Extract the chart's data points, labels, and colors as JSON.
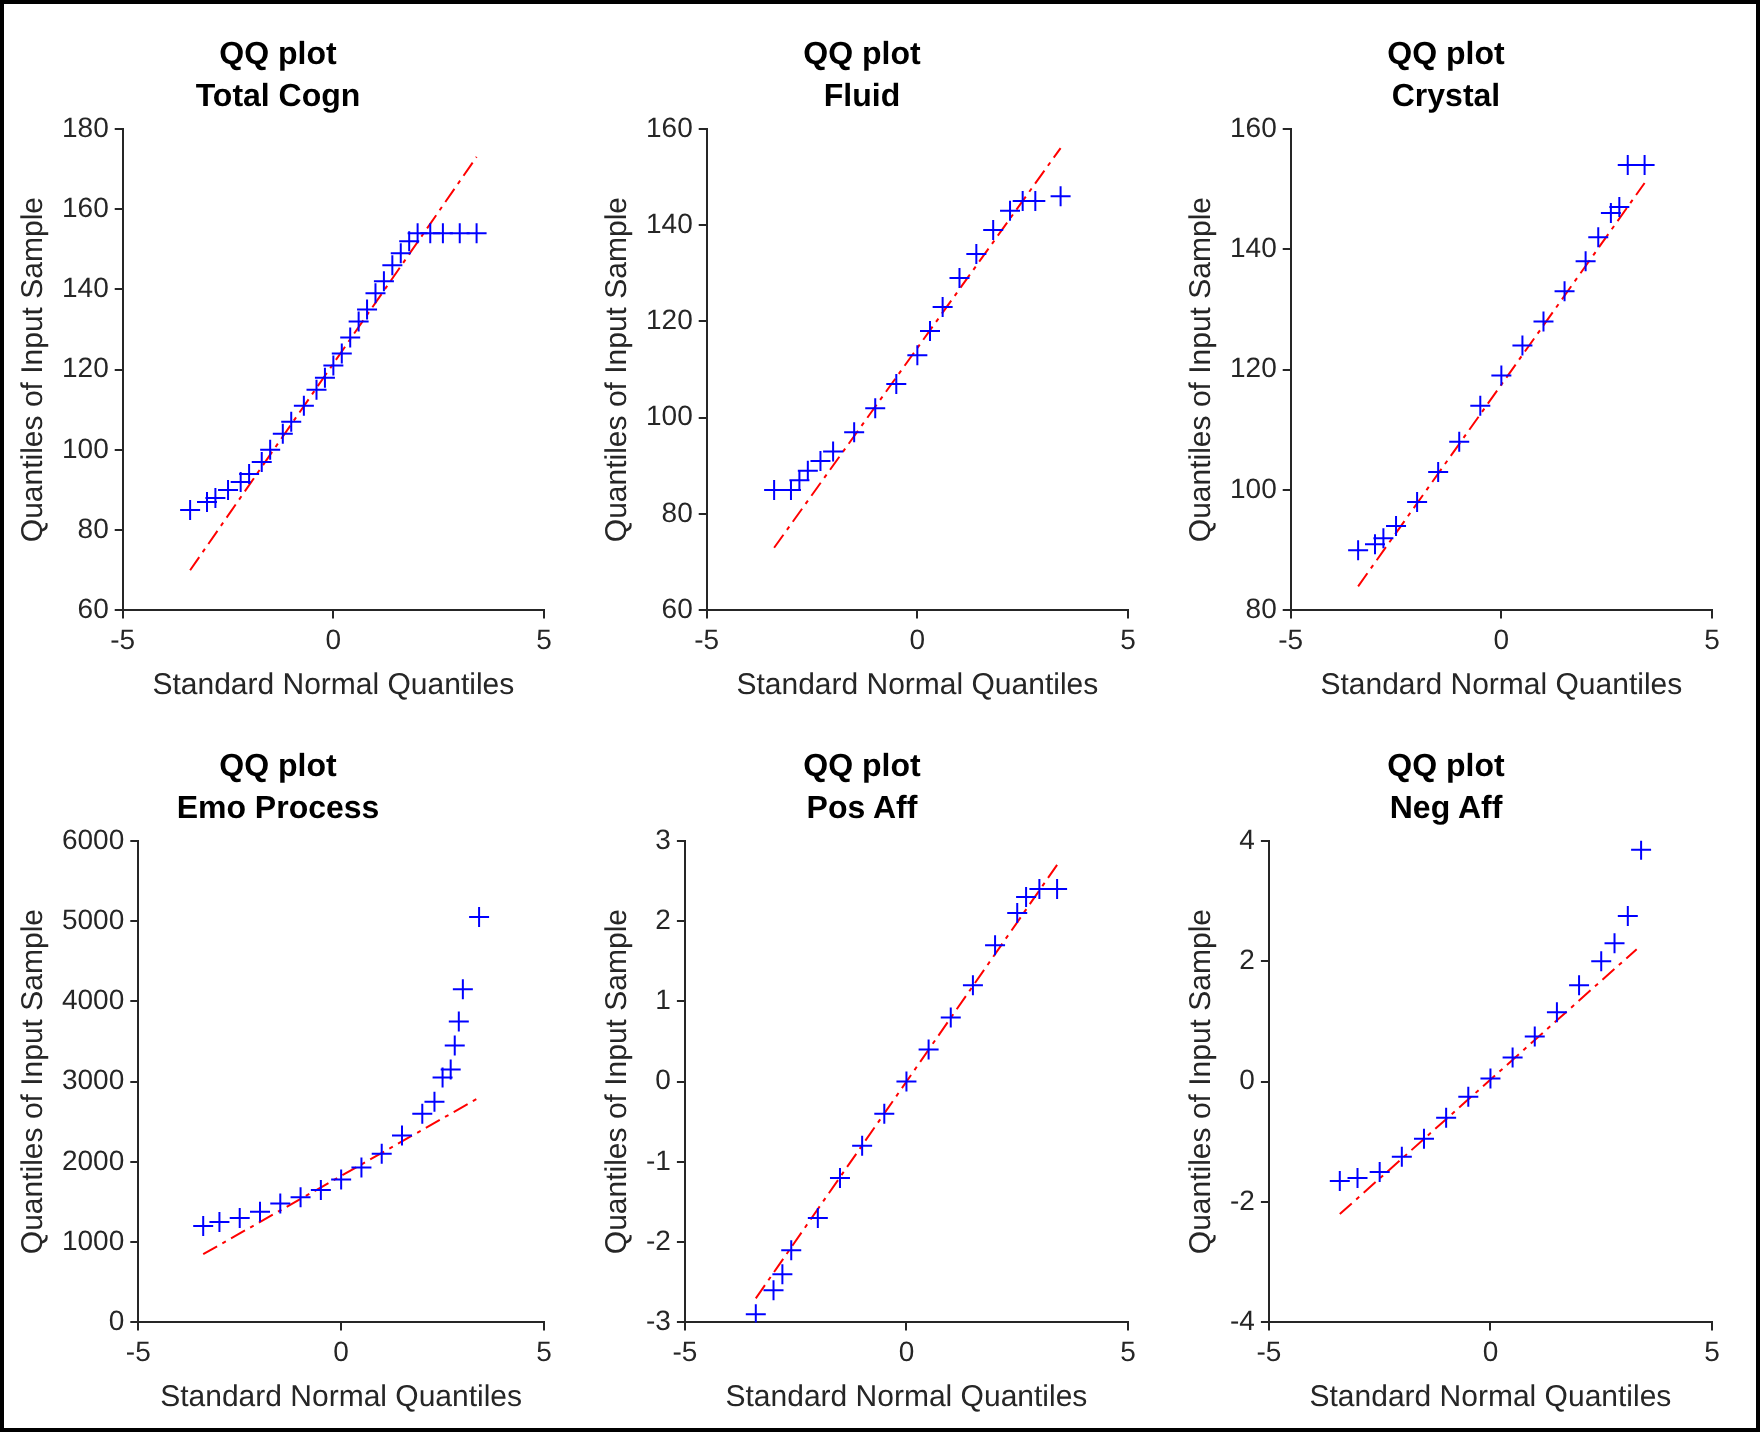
{
  "chart_data": [
    {
      "type": "scatter",
      "title": "QQ plot",
      "subtitle": "Total Cogn",
      "xlabel": "Standard Normal Quantiles",
      "ylabel": "Quantiles of Input Sample",
      "xlim": [
        -5,
        5
      ],
      "xticks": [
        -5,
        0,
        5
      ],
      "ylim": [
        60,
        180
      ],
      "yticks": [
        60,
        80,
        100,
        120,
        140,
        160,
        180
      ],
      "grid": false,
      "legend": false,
      "series": [
        {
          "type": "scatter",
          "marker": "cross",
          "color": "#0000ff",
          "x": [
            -3.4,
            -3.0,
            -2.8,
            -2.5,
            -2.2,
            -2.0,
            -1.7,
            -1.5,
            -1.2,
            -1.0,
            -0.7,
            -0.4,
            -0.2,
            0,
            0.2,
            0.4,
            0.6,
            0.8,
            1.0,
            1.2,
            1.4,
            1.6,
            1.8,
            2.0,
            2.3,
            2.6,
            3.0,
            3.4
          ],
          "values": [
            85,
            87,
            88,
            90,
            92,
            94,
            97,
            100,
            104,
            107,
            111,
            115,
            118,
            121,
            124,
            128,
            132,
            135,
            139,
            142,
            146,
            149,
            152,
            154,
            154,
            154,
            154,
            154
          ]
        },
        {
          "type": "line",
          "line_style": "dashed",
          "color": "#ff0000",
          "x": [
            -3.4,
            3.4
          ],
          "values": [
            70,
            173
          ]
        }
      ]
    },
    {
      "type": "scatter",
      "title": "QQ plot",
      "subtitle": "Fluid",
      "xlabel": "Standard Normal Quantiles",
      "ylabel": "Quantiles of Input Sample",
      "xlim": [
        -5,
        5
      ],
      "xticks": [
        -5,
        0,
        5
      ],
      "ylim": [
        60,
        160
      ],
      "yticks": [
        60,
        80,
        100,
        120,
        140,
        160
      ],
      "grid": false,
      "legend": false,
      "series": [
        {
          "type": "scatter",
          "marker": "cross",
          "color": "#0000ff",
          "x": [
            -3.4,
            -3.0,
            -2.8,
            -2.6,
            -2.3,
            -2.0,
            -1.5,
            -1.0,
            -0.5,
            0,
            0.3,
            0.6,
            1.0,
            1.4,
            1.8,
            2.2,
            2.5,
            2.8,
            3.4
          ],
          "values": [
            85,
            85,
            87,
            89,
            91,
            93,
            97,
            102,
            107,
            113,
            118,
            123,
            129,
            134,
            139,
            143,
            145,
            145,
            146
          ]
        },
        {
          "type": "line",
          "line_style": "dashed",
          "color": "#ff0000",
          "x": [
            -3.4,
            3.4
          ],
          "values": [
            73,
            156
          ]
        }
      ]
    },
    {
      "type": "scatter",
      "title": "QQ plot",
      "subtitle": "Crystal",
      "xlabel": "Standard Normal Quantiles",
      "ylabel": "Quantiles of Input Sample",
      "xlim": [
        -5,
        5
      ],
      "xticks": [
        -5,
        0,
        5
      ],
      "ylim": [
        80,
        160
      ],
      "yticks": [
        80,
        100,
        120,
        140,
        160
      ],
      "grid": false,
      "legend": false,
      "series": [
        {
          "type": "scatter",
          "marker": "cross",
          "color": "#0000ff",
          "x": [
            -3.4,
            -3.0,
            -2.8,
            -2.5,
            -2.0,
            -1.5,
            -1.0,
            -0.5,
            0,
            0.5,
            1.0,
            1.5,
            2.0,
            2.3,
            2.6,
            2.8,
            3.0,
            3.4
          ],
          "values": [
            90,
            91,
            92,
            94,
            98,
            103,
            108,
            114,
            119,
            124,
            128,
            133,
            138,
            142,
            146,
            147,
            154,
            154
          ]
        },
        {
          "type": "line",
          "line_style": "dashed",
          "color": "#ff0000",
          "x": [
            -3.4,
            3.4
          ],
          "values": [
            84,
            151
          ]
        }
      ]
    },
    {
      "type": "scatter",
      "title": "QQ plot",
      "subtitle": "Emo Process",
      "xlabel": "Standard Normal Quantiles",
      "ylabel": "Quantiles of Input Sample",
      "xlim": [
        -5,
        5
      ],
      "xticks": [
        -5,
        0,
        5
      ],
      "ylim": [
        0,
        6000
      ],
      "yticks": [
        0,
        1000,
        2000,
        3000,
        4000,
        5000,
        6000
      ],
      "grid": false,
      "legend": false,
      "series": [
        {
          "type": "scatter",
          "marker": "cross",
          "color": "#0000ff",
          "x": [
            -3.4,
            -3.0,
            -2.5,
            -2.0,
            -1.5,
            -1.0,
            -0.5,
            0,
            0.5,
            1.0,
            1.5,
            2.0,
            2.3,
            2.5,
            2.7,
            2.8,
            2.9,
            3.0,
            3.4
          ],
          "values": [
            1200,
            1250,
            1300,
            1380,
            1480,
            1560,
            1650,
            1780,
            1930,
            2100,
            2330,
            2600,
            2750,
            3050,
            3150,
            3450,
            3750,
            4150,
            5050
          ]
        },
        {
          "type": "line",
          "line_style": "dashed",
          "color": "#ff0000",
          "x": [
            -3.4,
            3.4
          ],
          "values": [
            850,
            2800
          ]
        }
      ]
    },
    {
      "type": "scatter",
      "title": "QQ plot",
      "subtitle": "Pos Aff",
      "xlabel": "Standard Normal Quantiles",
      "ylabel": "Quantiles of Input Sample",
      "xlim": [
        -5,
        5
      ],
      "xticks": [
        -5,
        0,
        5
      ],
      "ylim": [
        -3,
        3
      ],
      "yticks": [
        -3,
        -2,
        -1,
        0,
        1,
        2,
        3
      ],
      "grid": false,
      "legend": false,
      "series": [
        {
          "type": "scatter",
          "marker": "cross",
          "color": "#0000ff",
          "x": [
            -3.4,
            -3.0,
            -2.8,
            -2.6,
            -2.0,
            -1.5,
            -1.0,
            -0.5,
            0,
            0.5,
            1.0,
            1.5,
            2.0,
            2.5,
            2.7,
            3.0,
            3.4
          ],
          "values": [
            -2.9,
            -2.6,
            -2.4,
            -2.1,
            -1.7,
            -1.2,
            -0.8,
            -0.4,
            0,
            0.4,
            0.8,
            1.2,
            1.7,
            2.1,
            2.3,
            2.4,
            2.4
          ]
        },
        {
          "type": "line",
          "line_style": "dashed",
          "color": "#ff0000",
          "x": [
            -3.4,
            3.4
          ],
          "values": [
            -2.7,
            2.7
          ]
        }
      ]
    },
    {
      "type": "scatter",
      "title": "QQ plot",
      "subtitle": "Neg Aff",
      "xlabel": "Standard Normal Quantiles",
      "ylabel": "Quantiles of Input Sample",
      "xlim": [
        -5,
        5
      ],
      "xticks": [
        -5,
        0,
        5
      ],
      "ylim": [
        -4,
        4
      ],
      "yticks": [
        -4,
        -2,
        0,
        2,
        4
      ],
      "grid": false,
      "legend": false,
      "series": [
        {
          "type": "scatter",
          "marker": "cross",
          "color": "#0000ff",
          "x": [
            -3.4,
            -3.0,
            -2.5,
            -2.0,
            -1.5,
            -1.0,
            -0.5,
            0,
            0.5,
            1.0,
            1.5,
            2.0,
            2.5,
            2.8,
            3.1,
            3.4
          ],
          "values": [
            -1.65,
            -1.6,
            -1.5,
            -1.25,
            -0.95,
            -0.6,
            -0.25,
            0.05,
            0.4,
            0.75,
            1.15,
            1.6,
            2.0,
            2.3,
            2.75,
            3.85
          ]
        },
        {
          "type": "line",
          "line_style": "dashed",
          "color": "#ff0000",
          "x": [
            -3.4,
            3.3
          ],
          "values": [
            -2.2,
            2.2
          ]
        }
      ]
    }
  ]
}
